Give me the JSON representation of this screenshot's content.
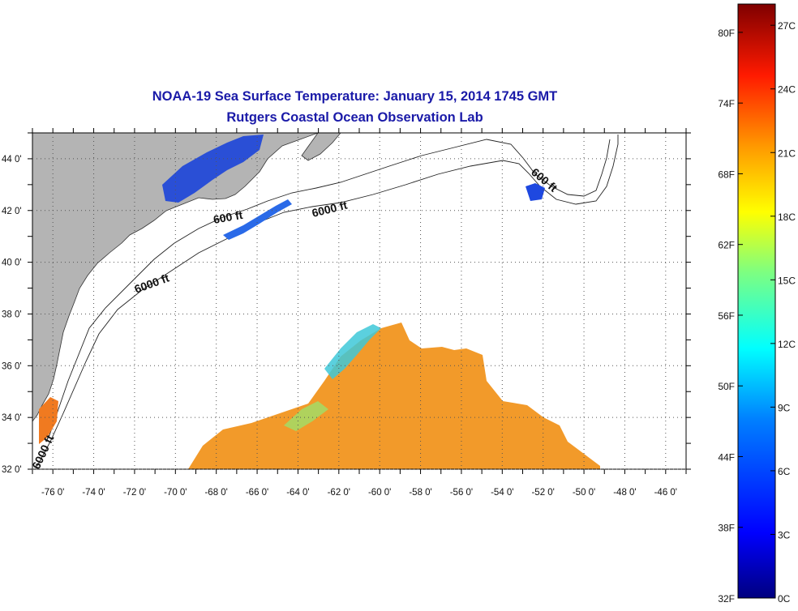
{
  "title": {
    "line1": "NOAA-19 Sea Surface Temperature:  January 15, 2014 1745 GMT",
    "line2": "Rutgers Coastal Ocean Observation Lab"
  },
  "map": {
    "lon_ticks": [
      "-76 0'",
      "-74 0'",
      "-72 0'",
      "-70 0'",
      "-68 0'",
      "-66 0'",
      "-64 0'",
      "-62 0'",
      "-60 0'",
      "-58 0'",
      "-56 0'",
      "-54 0'",
      "-52 0'",
      "-50 0'",
      "-48 0'",
      "-46 0'"
    ],
    "lat_ticks": [
      "44 0'",
      "42 0'",
      "40 0'",
      "38 0'",
      "36 0'",
      "34 0'",
      "32 0'"
    ],
    "lon_range": [
      -77,
      -45
    ],
    "lat_range": [
      32,
      45
    ],
    "contour_labels": [
      "600 ft",
      "6000 ft",
      "6000 ft",
      "600 ft",
      "6000 ft"
    ],
    "colors": {
      "land": "#b4b4b4",
      "ocean_nodata": "#ffffff",
      "grid": "#7a7a7a"
    }
  },
  "colorbar": {
    "fahrenheit_labels": [
      "80F",
      "74F",
      "68F",
      "62F",
      "56F",
      "50F",
      "44F",
      "38F",
      "32F"
    ],
    "celsius_labels": [
      "27C",
      "24C",
      "21C",
      "18C",
      "15C",
      "12C",
      "9C",
      "6C",
      "3C",
      "0C"
    ],
    "range_c": [
      0,
      28
    ],
    "colors": [
      "#00007f",
      "#0000ff",
      "#007fff",
      "#00ffff",
      "#7fff7f",
      "#ffff00",
      "#ff7f00",
      "#ff0000",
      "#7f0000"
    ]
  }
}
